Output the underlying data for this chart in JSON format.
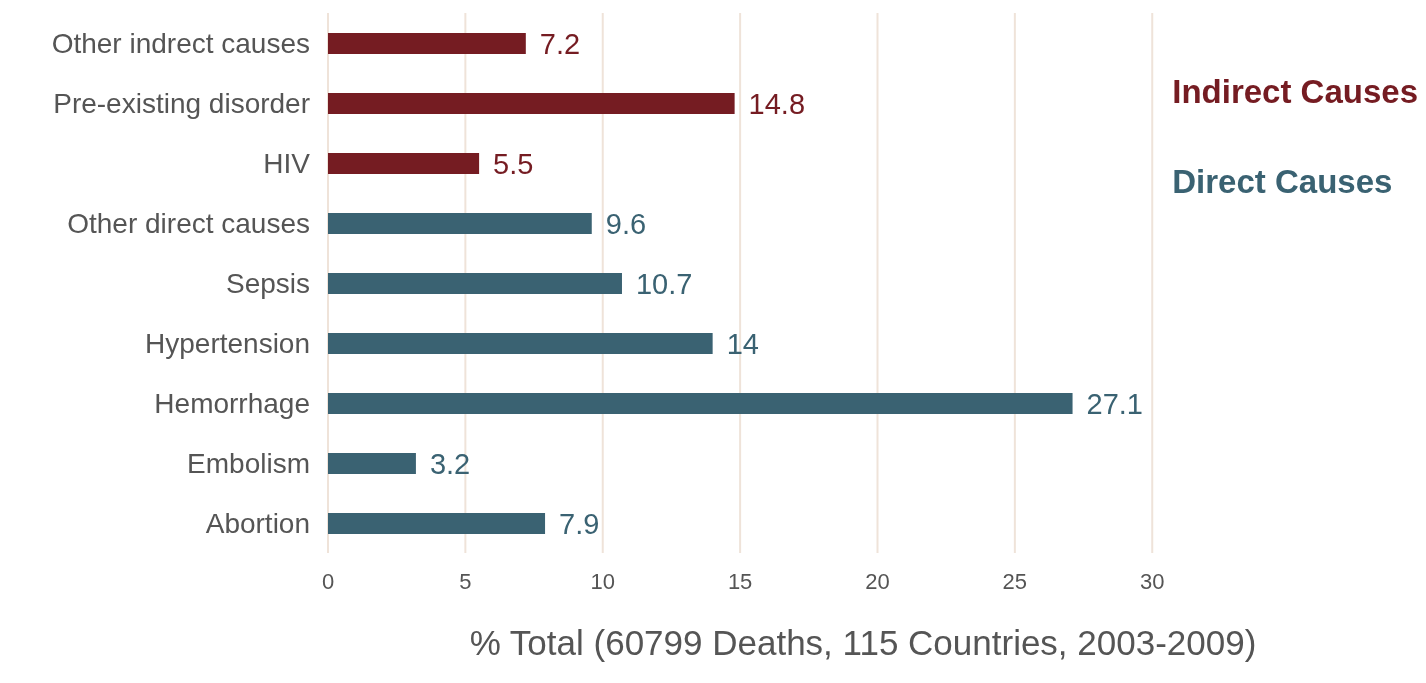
{
  "chart_data": {
    "type": "bar",
    "orientation": "horizontal",
    "stacked": true,
    "xlabel": "% Total (60799 Deaths, 115 Countries, 2003-2009)",
    "categories": [
      "Other indrect causes",
      "Pre-existing disorder",
      "HIV",
      "Other direct causes",
      "Sepsis",
      "Hypertension",
      "Hemorrhage",
      "Embolism",
      "Abortion"
    ],
    "series": [
      {
        "name": "Indirect Causes",
        "color": "#751c22",
        "values": [
          7.2,
          14.8,
          5.5,
          null,
          null,
          null,
          null,
          null,
          null
        ]
      },
      {
        "name": "Direct Causes",
        "color": "#3a6272",
        "values": [
          null,
          null,
          null,
          9.6,
          10.7,
          14,
          27.1,
          3.2,
          7.9
        ]
      }
    ],
    "xlim": [
      0,
      30
    ],
    "xticks": [
      0,
      5,
      10,
      15,
      20,
      25,
      30
    ],
    "grid": "x",
    "legend": "top right",
    "data_labels": true
  }
}
